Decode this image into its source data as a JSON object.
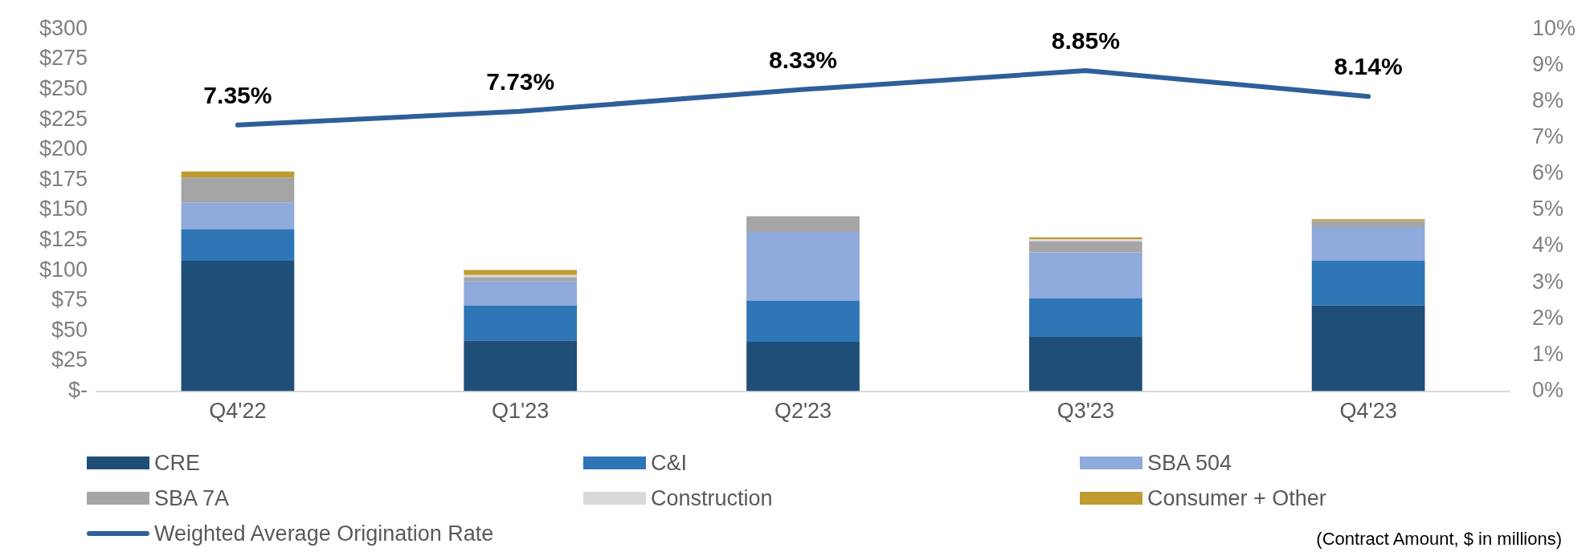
{
  "chart_data": {
    "type": "bar",
    "stacked": true,
    "grid": false,
    "legend": "bottom",
    "marker": "none",
    "line_style": "solid",
    "categories": [
      "Q4'22",
      "Q1'23",
      "Q2'23",
      "Q3'23",
      "Q4'23"
    ],
    "series": [
      {
        "name": "CRE",
        "color": "#1f4e79",
        "values": [
          108,
          42,
          41,
          45,
          71
        ]
      },
      {
        "name": "C&I",
        "color": "#2e75b6",
        "values": [
          26,
          29,
          34,
          32,
          37
        ]
      },
      {
        "name": "SBA 504",
        "color": "#8faadc",
        "values": [
          22,
          20,
          57,
          38,
          28
        ]
      },
      {
        "name": "SBA 7A",
        "color": "#a5a5a5",
        "values": [
          21,
          3.5,
          13,
          9,
          5
        ]
      },
      {
        "name": "Construction",
        "color": "#d9d9d9",
        "values": [
          0,
          1.7,
          0,
          2,
          0
        ]
      },
      {
        "name": "Consumer + Other",
        "color": "#bf9b30",
        "values": [
          5,
          4.3,
          0,
          1.5,
          1.5
        ]
      },
      {
        "name": "Weighted Average Origination Rate",
        "type": "line",
        "axis": "y2",
        "color": "#2e5f9a",
        "values": [
          7.35,
          7.73,
          8.33,
          8.85,
          8.14
        ],
        "value_labels": [
          "7.35%",
          "7.73%",
          "8.33%",
          "8.85%",
          "8.14%"
        ]
      }
    ],
    "ylim": [
      0,
      300
    ],
    "yticks": [
      {
        "value": 0,
        "label": "$-"
      },
      {
        "value": 25,
        "label": "$25"
      },
      {
        "value": 50,
        "label": "$50"
      },
      {
        "value": 75,
        "label": "$75"
      },
      {
        "value": 100,
        "label": "$100"
      },
      {
        "value": 125,
        "label": "$125"
      },
      {
        "value": 150,
        "label": "$150"
      },
      {
        "value": 175,
        "label": "$175"
      },
      {
        "value": 200,
        "label": "$200"
      },
      {
        "value": 225,
        "label": "$225"
      },
      {
        "value": 250,
        "label": "$250"
      },
      {
        "value": 275,
        "label": "$275"
      },
      {
        "value": 300,
        "label": "$300"
      }
    ],
    "y2lim": [
      0,
      10
    ],
    "y2ticks": [
      {
        "value": 0,
        "label": "0%"
      },
      {
        "value": 1,
        "label": "1%"
      },
      {
        "value": 2,
        "label": "2%"
      },
      {
        "value": 3,
        "label": "3%"
      },
      {
        "value": 4,
        "label": "4%"
      },
      {
        "value": 5,
        "label": "5%"
      },
      {
        "value": 6,
        "label": "6%"
      },
      {
        "value": 7,
        "label": "7%"
      },
      {
        "value": 8,
        "label": "8%"
      },
      {
        "value": 9,
        "label": "9%"
      },
      {
        "value": 10,
        "label": "10%"
      }
    ],
    "annotations": [
      "(Contract Amount, $ in millions)"
    ]
  }
}
